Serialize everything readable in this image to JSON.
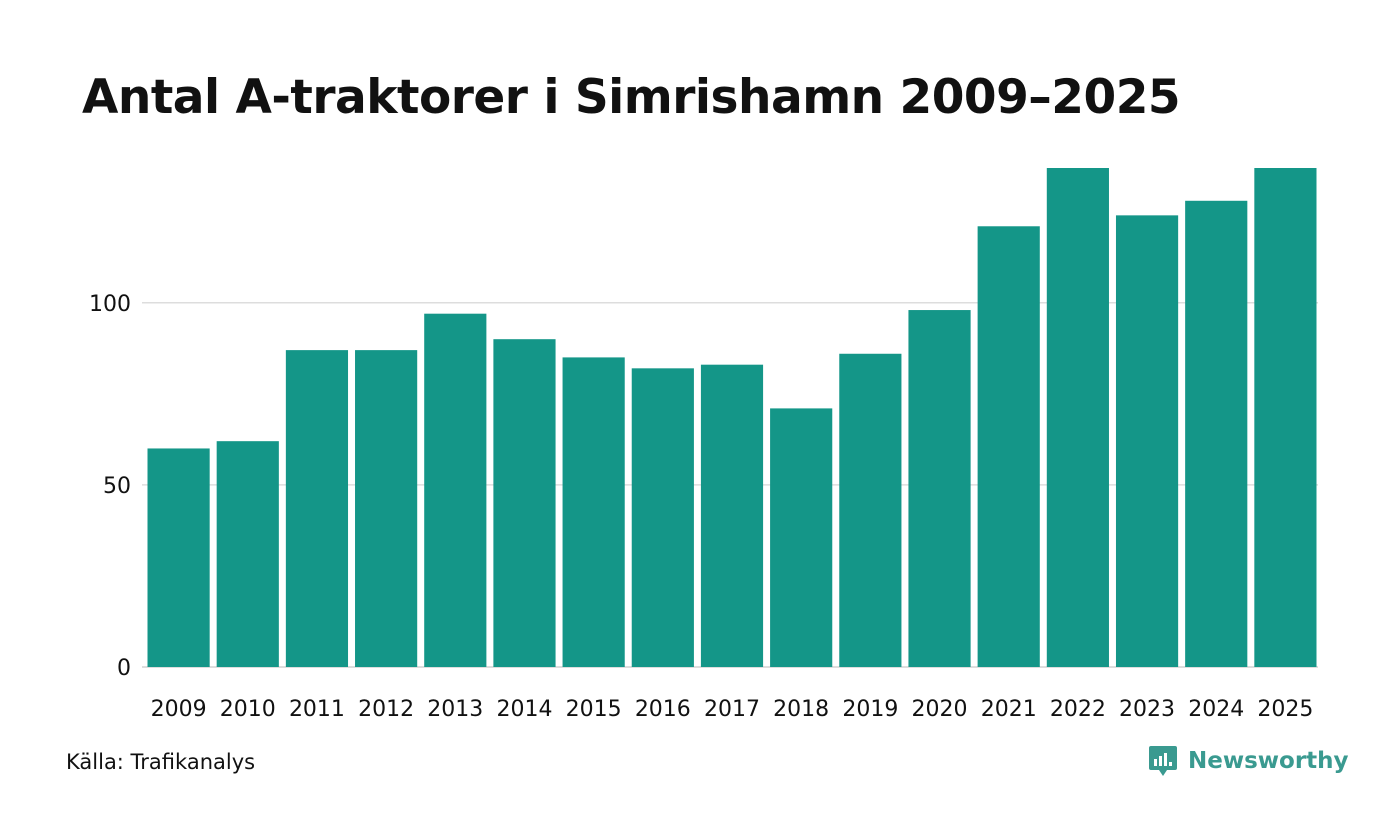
{
  "chart_data": {
    "type": "bar",
    "title": "Antal A-traktorer i Simrishamn 2009–2025",
    "categories": [
      "2009",
      "2010",
      "2011",
      "2012",
      "2013",
      "2014",
      "2015",
      "2016",
      "2017",
      "2018",
      "2019",
      "2020",
      "2021",
      "2022",
      "2023",
      "2024",
      "2025"
    ],
    "values": [
      60,
      62,
      87,
      87,
      97,
      90,
      85,
      82,
      83,
      71,
      86,
      98,
      121,
      137,
      124,
      128,
      137
    ],
    "ylim": [
      0,
      137
    ],
    "yticks": [
      0,
      50,
      100
    ],
    "xlabel": "",
    "ylabel": "",
    "grid": true,
    "bar_color": "#149688",
    "grid_color": "#dddddd"
  },
  "source": "Källa: Trafikanalys",
  "brand": {
    "name": "Newsworthy",
    "icon": "newsworthy-logo-icon",
    "color": "#3a9a90"
  }
}
